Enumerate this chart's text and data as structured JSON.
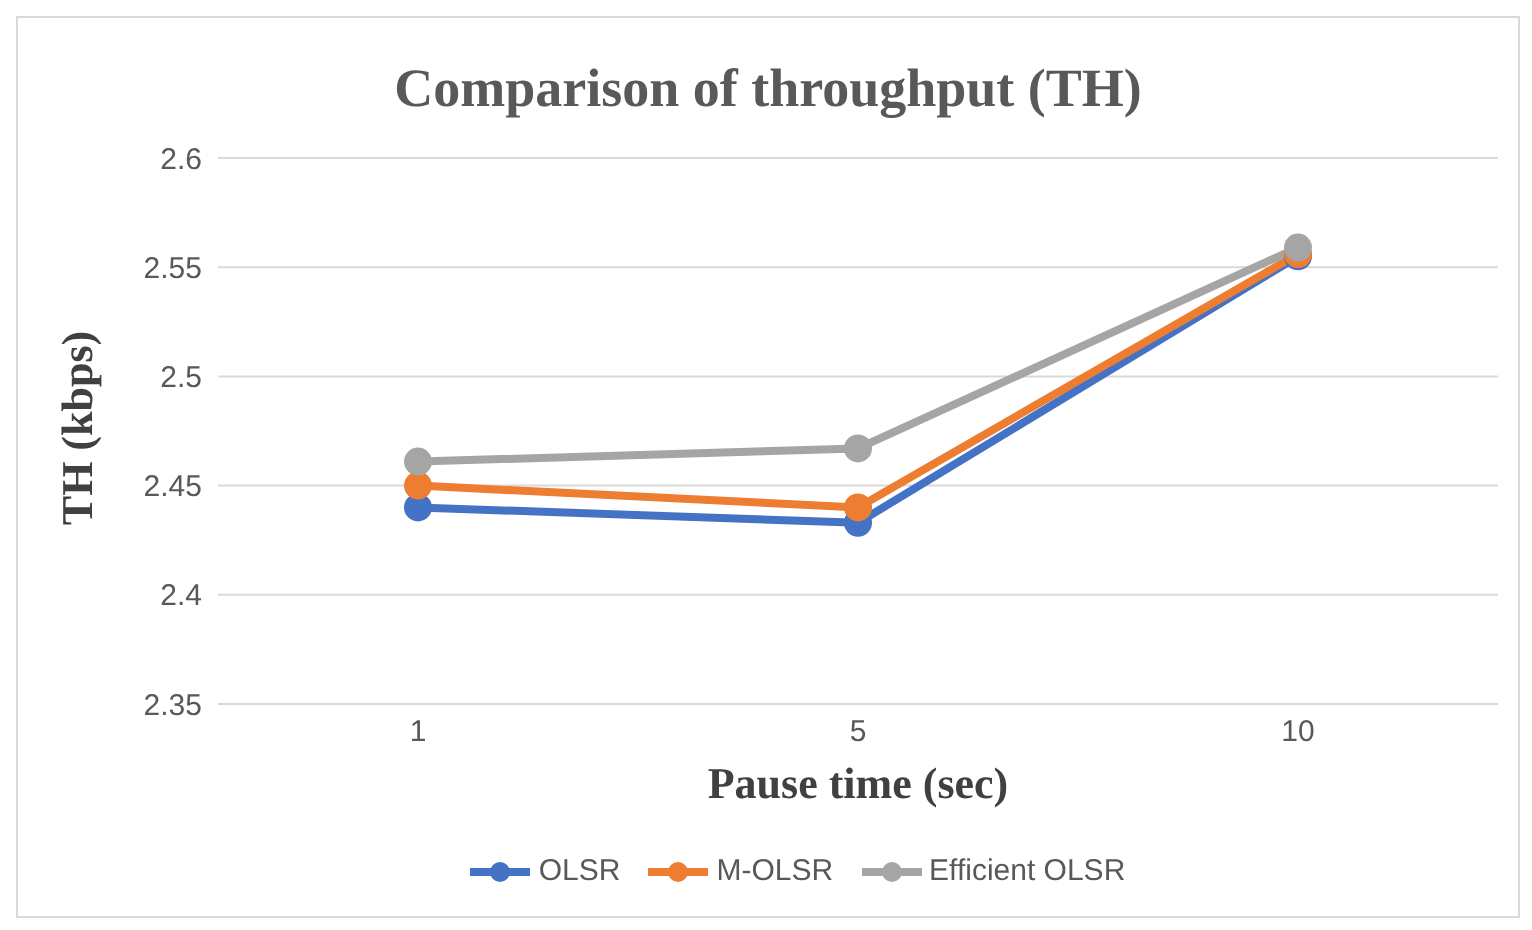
{
  "chart_data": {
    "type": "line",
    "title": "Comparison of throughput (TH)",
    "xlabel": "Pause time (sec)",
    "ylabel": "TH (kbps)",
    "categories": [
      "1",
      "5",
      "10"
    ],
    "series": [
      {
        "name": "OLSR",
        "color": "#4472c4",
        "values": [
          2.44,
          2.433,
          2.555
        ]
      },
      {
        "name": "M-OLSR",
        "color": "#ed7d31",
        "values": [
          2.45,
          2.44,
          2.556
        ]
      },
      {
        "name": "Efficient OLSR",
        "color": "#a5a5a5",
        "values": [
          2.461,
          2.467,
          2.559
        ]
      }
    ],
    "ylim": [
      2.35,
      2.6
    ],
    "yticks": [
      2.35,
      2.4,
      2.45,
      2.5,
      2.55,
      2.6
    ],
    "grid": "y",
    "legend": "bottom",
    "marker": "circle",
    "line_style": "solid"
  }
}
